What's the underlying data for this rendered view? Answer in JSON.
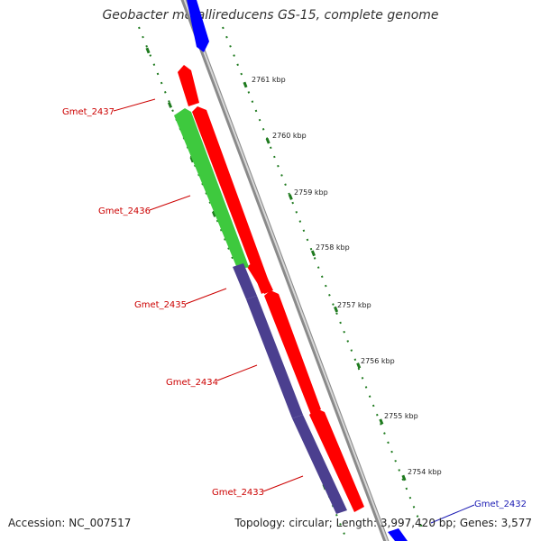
{
  "title": "Geobacter metallireducens GS-15, complete genome",
  "accession_text": "Accession: NC_007517",
  "summary_text": "Topology: circular; Length: 3,997,420 bp; Genes: 3,577",
  "colors": {
    "forward_cds": "#ff0000",
    "reverse_cds_1": "#3ec93e",
    "reverse_cds_2": "#4b3f8f",
    "other_strand": "#0000ff",
    "backbone": "#999999",
    "ticks": "#1e7a1e",
    "gene_label": "#cc0000",
    "gene_label_blue": "#1a1ab3"
  },
  "kbp_labels": [
    "2761 kbp",
    "2760 kbp",
    "2759 kbp",
    "2758 kbp",
    "2757 kbp",
    "2756 kbp",
    "2755 kbp",
    "2754 kbp"
  ],
  "gene_labels": [
    "Gmet_2437",
    "Gmet_2436",
    "Gmet_2435",
    "Gmet_2434",
    "Gmet_2433"
  ],
  "edge_gene_label": "Gmet_2432"
}
